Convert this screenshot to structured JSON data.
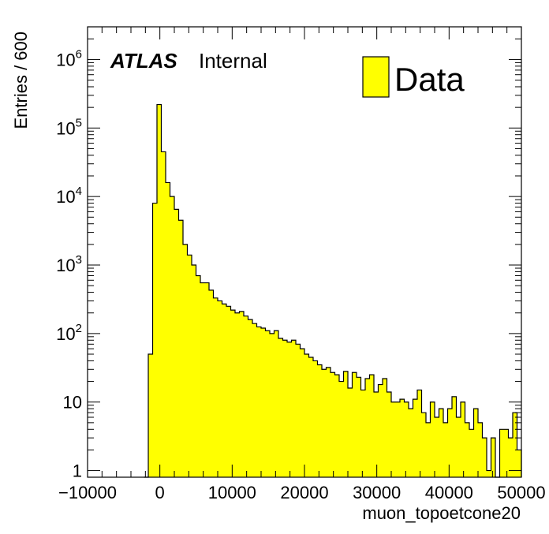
{
  "chart_data": {
    "type": "histogram",
    "xlabel": "muon_topoetcone20",
    "ylabel": "Entries / 600",
    "xlim": [
      -10000,
      50000
    ],
    "ylim": [
      0.8,
      3000000
    ],
    "y_scale": "log",
    "bin_width": 600,
    "x_ticks": [
      -10000,
      0,
      10000,
      20000,
      30000,
      40000,
      50000
    ],
    "x_tick_labels": [
      "−10000",
      "0",
      "10000",
      "20000",
      "30000",
      "40000",
      "50000"
    ],
    "y_ticks": [
      {
        "value": 1,
        "base": "1",
        "exp": ""
      },
      {
        "value": 10,
        "base": "10",
        "exp": ""
      },
      {
        "value": 100,
        "base": "10",
        "exp": "2"
      },
      {
        "value": 1000,
        "base": "10",
        "exp": "3"
      },
      {
        "value": 10000,
        "base": "10",
        "exp": "4"
      },
      {
        "value": 100000,
        "base": "10",
        "exp": "5"
      },
      {
        "value": 1000000,
        "base": "10",
        "exp": "6"
      }
    ],
    "series": [
      {
        "name": "Data",
        "color": "#ffff00",
        "edge_color": "#000000"
      }
    ],
    "bins": [
      {
        "x": -2200,
        "y": 0.8
      },
      {
        "x": -1600,
        "y": 50
      },
      {
        "x": -1000,
        "y": 8000
      },
      {
        "x": -400,
        "y": 220000
      },
      {
        "x": 200,
        "y": 45000
      },
      {
        "x": 800,
        "y": 16000
      },
      {
        "x": 1400,
        "y": 10000
      },
      {
        "x": 2000,
        "y": 6500
      },
      {
        "x": 2600,
        "y": 4500
      },
      {
        "x": 3200,
        "y": 2000
      },
      {
        "x": 3800,
        "y": 1400
      },
      {
        "x": 4400,
        "y": 1000
      },
      {
        "x": 5000,
        "y": 700
      },
      {
        "x": 5600,
        "y": 550
      },
      {
        "x": 6200,
        "y": 550
      },
      {
        "x": 6800,
        "y": 430
      },
      {
        "x": 7400,
        "y": 330
      },
      {
        "x": 8000,
        "y": 300
      },
      {
        "x": 8600,
        "y": 270
      },
      {
        "x": 9200,
        "y": 250
      },
      {
        "x": 9800,
        "y": 220
      },
      {
        "x": 10400,
        "y": 200
      },
      {
        "x": 11000,
        "y": 210
      },
      {
        "x": 11600,
        "y": 180
      },
      {
        "x": 12200,
        "y": 160
      },
      {
        "x": 12800,
        "y": 140
      },
      {
        "x": 13400,
        "y": 125
      },
      {
        "x": 14000,
        "y": 120
      },
      {
        "x": 14600,
        "y": 110
      },
      {
        "x": 15200,
        "y": 100
      },
      {
        "x": 15800,
        "y": 110
      },
      {
        "x": 16400,
        "y": 85
      },
      {
        "x": 17000,
        "y": 80
      },
      {
        "x": 17600,
        "y": 75
      },
      {
        "x": 18200,
        "y": 80
      },
      {
        "x": 18800,
        "y": 70
      },
      {
        "x": 19400,
        "y": 60
      },
      {
        "x": 20000,
        "y": 50
      },
      {
        "x": 20600,
        "y": 45
      },
      {
        "x": 21200,
        "y": 40
      },
      {
        "x": 21800,
        "y": 35
      },
      {
        "x": 22400,
        "y": 30
      },
      {
        "x": 23000,
        "y": 32
      },
      {
        "x": 23600,
        "y": 27
      },
      {
        "x": 24200,
        "y": 25
      },
      {
        "x": 24800,
        "y": 20
      },
      {
        "x": 25400,
        "y": 28
      },
      {
        "x": 26000,
        "y": 16
      },
      {
        "x": 26600,
        "y": 27
      },
      {
        "x": 27200,
        "y": 23
      },
      {
        "x": 27800,
        "y": 15
      },
      {
        "x": 28400,
        "y": 22
      },
      {
        "x": 29000,
        "y": 25
      },
      {
        "x": 29600,
        "y": 14
      },
      {
        "x": 30200,
        "y": 18
      },
      {
        "x": 30800,
        "y": 22
      },
      {
        "x": 31400,
        "y": 14
      },
      {
        "x": 32000,
        "y": 10
      },
      {
        "x": 32600,
        "y": 10
      },
      {
        "x": 33200,
        "y": 11
      },
      {
        "x": 33800,
        "y": 10
      },
      {
        "x": 34400,
        "y": 8
      },
      {
        "x": 35000,
        "y": 11
      },
      {
        "x": 35600,
        "y": 15
      },
      {
        "x": 36200,
        "y": 7
      },
      {
        "x": 36800,
        "y": 5
      },
      {
        "x": 37400,
        "y": 10
      },
      {
        "x": 38000,
        "y": 6
      },
      {
        "x": 38600,
        "y": 8
      },
      {
        "x": 39200,
        "y": 5
      },
      {
        "x": 39800,
        "y": 8
      },
      {
        "x": 40400,
        "y": 12
      },
      {
        "x": 41000,
        "y": 6
      },
      {
        "x": 41600,
        "y": 10
      },
      {
        "x": 42200,
        "y": 5
      },
      {
        "x": 42800,
        "y": 4
      },
      {
        "x": 43400,
        "y": 8
      },
      {
        "x": 44000,
        "y": 5
      },
      {
        "x": 44600,
        "y": 3
      },
      {
        "x": 45200,
        "y": 1
      },
      {
        "x": 45800,
        "y": 3
      },
      {
        "x": 46400,
        "y": 0.8
      },
      {
        "x": 47000,
        "y": 4
      },
      {
        "x": 47600,
        "y": 4
      },
      {
        "x": 48200,
        "y": 3
      },
      {
        "x": 48800,
        "y": 7
      },
      {
        "x": 49400,
        "y": 2
      }
    ]
  },
  "annotations": {
    "experiment": "ATLAS",
    "status": "Internal"
  },
  "legend": {
    "label": "Data",
    "swatch_color": "#ffff00"
  }
}
